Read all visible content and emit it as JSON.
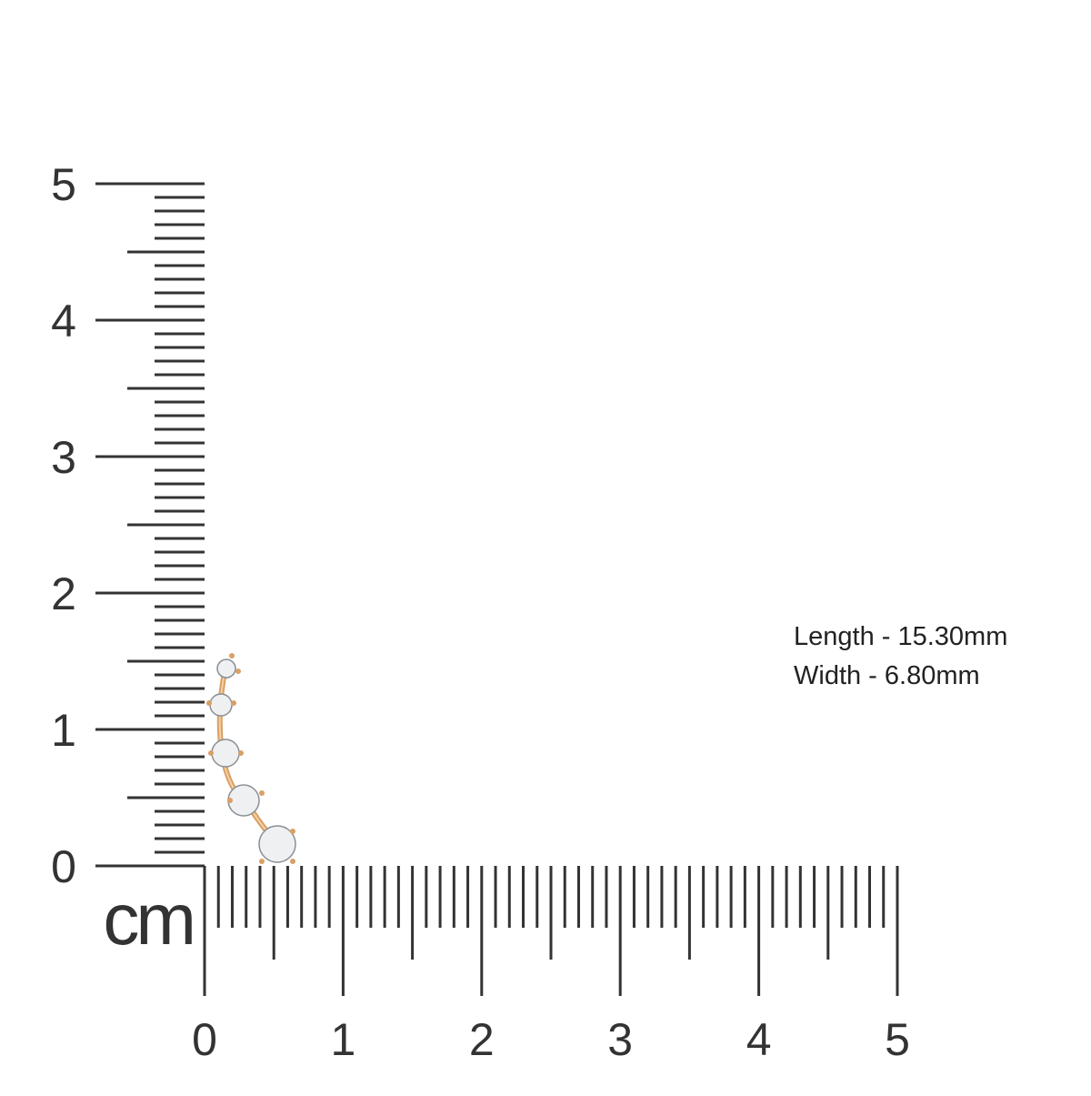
{
  "ruler": {
    "unit": "cm",
    "vertical_labels": [
      0,
      1,
      2,
      3,
      4,
      5
    ],
    "horizontal_labels": [
      0,
      1,
      2,
      3,
      4,
      5
    ]
  },
  "dimensions": {
    "length": "Length - 15.30mm",
    "width": "Width - 6.80mm"
  }
}
